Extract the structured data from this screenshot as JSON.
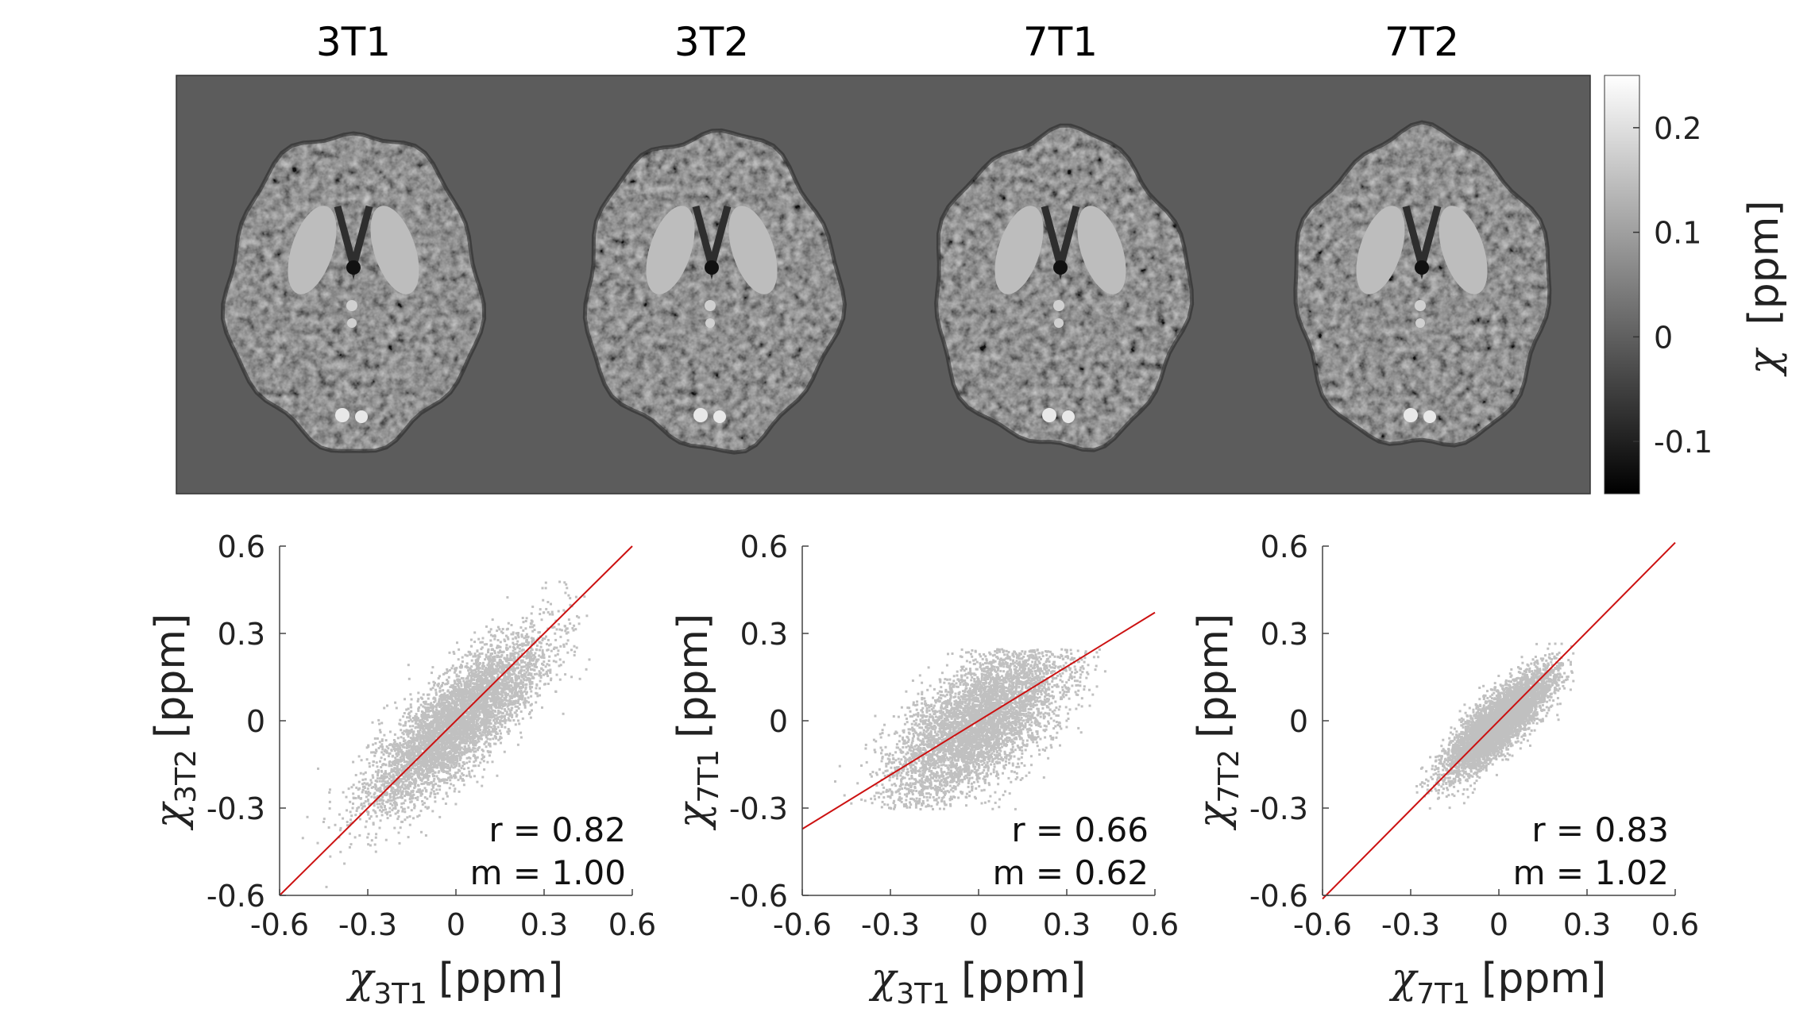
{
  "montage": {
    "titles": [
      "3T1",
      "3T2",
      "7T1",
      "7T2"
    ],
    "background_color": "#5c5c5c",
    "colorbar": {
      "label_symbol": "χ",
      "label_unit": "[ppm]",
      "ticks": [
        "0.2",
        "0.1",
        "0",
        "-0.1"
      ],
      "tick_values": [
        0.2,
        0.1,
        0,
        -0.1
      ],
      "range": [
        -0.15,
        0.25
      ],
      "colormap": "gray"
    }
  },
  "chart_data": [
    {
      "type": "scatter",
      "xlabel": {
        "symbol": "χ",
        "sub": "3T1",
        "unit": "[ppm]"
      },
      "ylabel": {
        "symbol": "χ",
        "sub": "3T2",
        "unit": "[ppm]"
      },
      "xlim": [
        -0.6,
        0.6
      ],
      "ylim": [
        -0.6,
        0.6
      ],
      "xticks": [
        -0.6,
        -0.3,
        0,
        0.3,
        0.6
      ],
      "yticks": [
        -0.6,
        -0.3,
        0,
        0.3,
        0.6
      ],
      "xtick_labels": [
        "-0.6",
        "-0.3",
        "0",
        "0.3",
        "0.6"
      ],
      "ytick_labels": [
        "-0.6",
        "-0.3",
        "0",
        "0.3",
        "0.6"
      ],
      "r_text": "r = 0.82",
      "m_text": "m = 1.00",
      "r": 0.82,
      "slope": 1.0,
      "point_color": "#c0c0c0",
      "fit_color": "#cc1111",
      "cloud": {
        "x_sd": 0.15,
        "y_sd": 0.15,
        "x_range": [
          -0.55,
          0.45
        ],
        "y_range": [
          -0.6,
          0.5
        ]
      }
    },
    {
      "type": "scatter",
      "xlabel": {
        "symbol": "χ",
        "sub": "3T1",
        "unit": "[ppm]"
      },
      "ylabel": {
        "symbol": "χ",
        "sub": "7T1",
        "unit": "[ppm]"
      },
      "xlim": [
        -0.6,
        0.6
      ],
      "ylim": [
        -0.6,
        0.6
      ],
      "xticks": [
        -0.6,
        -0.3,
        0,
        0.3,
        0.6
      ],
      "yticks": [
        -0.6,
        -0.3,
        0,
        0.3,
        0.6
      ],
      "xtick_labels": [
        "-0.6",
        "-0.3",
        "0",
        "0.3",
        "0.6"
      ],
      "ytick_labels": [
        "-0.6",
        "-0.3",
        "0",
        "0.3",
        "0.6"
      ],
      "r_text": "r = 0.66",
      "m_text": "m = 0.62",
      "r": 0.66,
      "slope": 0.62,
      "point_color": "#c0c0c0",
      "fit_color": "#cc1111",
      "cloud": {
        "x_sd": 0.15,
        "y_sd": 0.14,
        "x_range": [
          -0.6,
          0.48
        ],
        "y_range": [
          -0.3,
          0.25
        ]
      }
    },
    {
      "type": "scatter",
      "xlabel": {
        "symbol": "χ",
        "sub": "7T1",
        "unit": "[ppm]"
      },
      "ylabel": {
        "symbol": "χ",
        "sub": "7T2",
        "unit": "[ppm]"
      },
      "xlim": [
        -0.6,
        0.6
      ],
      "ylim": [
        -0.6,
        0.6
      ],
      "xticks": [
        -0.6,
        -0.3,
        0,
        0.3,
        0.6
      ],
      "yticks": [
        -0.6,
        -0.3,
        0,
        0.3,
        0.6
      ],
      "xtick_labels": [
        "-0.6",
        "-0.3",
        "0",
        "0.3",
        "0.6"
      ],
      "ytick_labels": [
        "-0.6",
        "-0.3",
        "0",
        "0.3",
        "0.6"
      ],
      "r_text": "r = 0.83",
      "m_text": "m = 1.02",
      "r": 0.83,
      "slope": 1.02,
      "point_color": "#c0c0c0",
      "fit_color": "#cc1111",
      "cloud": {
        "x_sd": 0.09,
        "y_sd": 0.09,
        "x_range": [
          -0.3,
          0.25
        ],
        "y_range": [
          -0.3,
          0.27
        ]
      }
    }
  ]
}
